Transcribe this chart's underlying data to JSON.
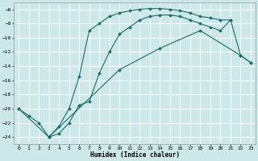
{
  "title": "",
  "xlabel": "Humidex (Indice chaleur)",
  "ylabel": "",
  "bg_color": "#cce8e8",
  "line_color": "#1a6b6b",
  "grid_color": "#ffffff",
  "xlim": [
    -0.5,
    23.5
  ],
  "ylim": [
    -25,
    -5.0
  ],
  "yticks": [
    -24,
    -22,
    -20,
    -18,
    -16,
    -14,
    -12,
    -10,
    -8,
    -6
  ],
  "xticks": [
    0,
    1,
    2,
    3,
    4,
    5,
    6,
    7,
    8,
    9,
    10,
    11,
    12,
    13,
    14,
    15,
    16,
    17,
    18,
    19,
    20,
    21,
    22,
    23
  ],
  "line1_x": [
    0,
    1,
    2,
    3,
    4,
    5,
    6,
    7,
    8,
    9,
    10,
    11,
    12,
    13,
    14,
    15,
    16,
    17,
    18,
    19,
    20,
    21
  ],
  "line1_y": [
    -20,
    -21,
    -22,
    -24,
    -22.5,
    -20,
    -15.5,
    -9,
    -8,
    -7,
    -6.5,
    -6.2,
    -6,
    -5.9,
    -5.9,
    -6.0,
    -6.2,
    -6.5,
    -7.0,
    -7.2,
    -7.5,
    -7.5
  ],
  "line2_x": [
    3,
    4,
    5,
    6,
    7,
    8,
    9,
    10,
    11,
    12,
    13,
    14,
    15,
    16,
    17,
    18,
    19,
    20,
    21,
    22,
    23
  ],
  "line2_y": [
    -24,
    -23.5,
    -22,
    -19.5,
    -19,
    -15,
    -12,
    -9.5,
    -8.5,
    -7.5,
    -7.0,
    -6.8,
    -6.8,
    -7.0,
    -7.5,
    -8.0,
    -8.5,
    -9.0,
    -7.5,
    -12.5,
    -13.5
  ],
  "line3_x": [
    0,
    3,
    10,
    14,
    18,
    22,
    23
  ],
  "line3_y": [
    -20,
    -24,
    -14.5,
    -11.5,
    -9.0,
    -12.5,
    -13.5
  ]
}
